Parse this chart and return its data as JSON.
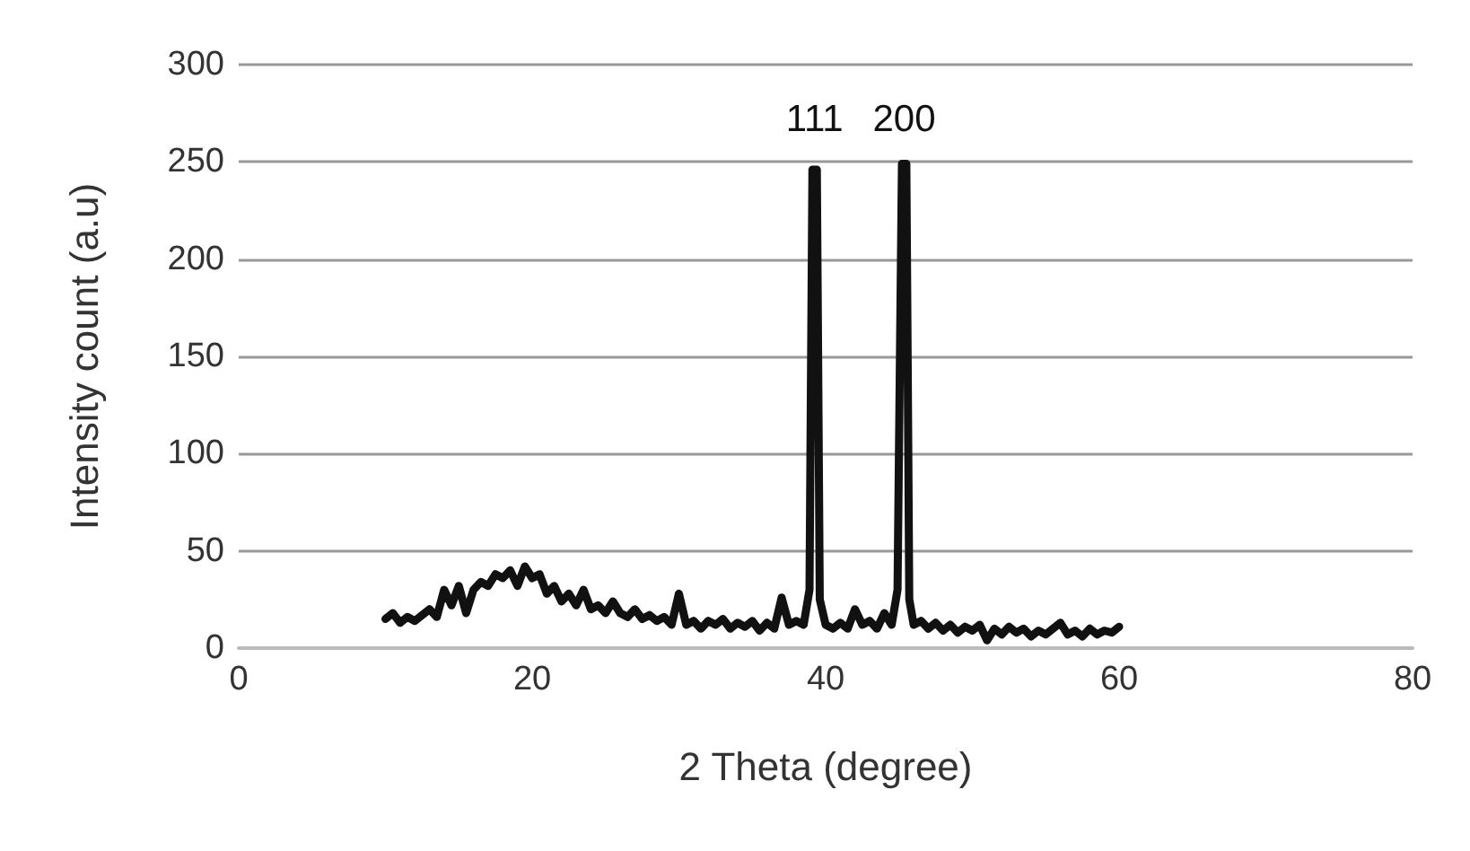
{
  "chart_data": {
    "type": "line",
    "xlabel": "2 Theta (degree)",
    "ylabel": "Intensity count (a.u)",
    "xlim": [
      0,
      80
    ],
    "xticks": [
      0,
      20,
      40,
      60,
      80
    ],
    "ylim": [
      0,
      300
    ],
    "yticks": [
      0,
      50,
      100,
      150,
      200,
      250,
      300
    ],
    "grid": "y",
    "marker": "none",
    "line_style": "solid",
    "annotations": [
      {
        "text": "111",
        "x": 39.25,
        "y": 272
      },
      {
        "text": "200",
        "x": 45.35,
        "y": 272
      }
    ],
    "series": [
      {
        "color": "#111111",
        "x": [
          10,
          10.5,
          11,
          11.5,
          12,
          12.5,
          13,
          13.5,
          14,
          14.5,
          15,
          15.5,
          16,
          16.5,
          17,
          17.5,
          18,
          18.5,
          19,
          19.5,
          20,
          20.5,
          21,
          21.5,
          22,
          22.5,
          23,
          23.5,
          24,
          24.5,
          25,
          25.5,
          26,
          26.5,
          27,
          27.5,
          28,
          28.5,
          29,
          29.5,
          30,
          30.5,
          31,
          31.5,
          32,
          32.5,
          33,
          33.5,
          34,
          34.5,
          35,
          35.5,
          36,
          36.5,
          37,
          37.5,
          38,
          38.5,
          38.9,
          39.1,
          39.4,
          39.6,
          40,
          40.5,
          41,
          41.5,
          42,
          42.5,
          43,
          43.5,
          44,
          44.5,
          44.9,
          45.2,
          45.5,
          45.7,
          46,
          46.5,
          47,
          47.5,
          48,
          48.5,
          49,
          49.5,
          50,
          50.5,
          51,
          51.5,
          52,
          52.5,
          53,
          53.5,
          54,
          54.5,
          55,
          55.5,
          56,
          56.5,
          57,
          57.5,
          58,
          58.5,
          59,
          59.5,
          60
        ],
        "values": [
          15,
          18,
          13,
          16,
          14,
          17,
          20,
          16,
          30,
          22,
          32,
          18,
          30,
          34,
          32,
          38,
          36,
          40,
          32,
          42,
          36,
          38,
          28,
          32,
          24,
          28,
          22,
          30,
          20,
          22,
          18,
          24,
          18,
          16,
          20,
          15,
          17,
          14,
          16,
          12,
          28,
          12,
          14,
          10,
          14,
          12,
          15,
          10,
          13,
          11,
          14,
          9,
          13,
          10,
          26,
          12,
          14,
          12,
          30,
          246,
          246,
          25,
          12,
          10,
          13,
          10,
          20,
          12,
          14,
          10,
          18,
          12,
          30,
          249,
          249,
          25,
          12,
          14,
          10,
          13,
          9,
          12,
          8,
          11,
          9,
          12,
          4,
          10,
          7,
          11,
          8,
          10,
          6,
          9,
          7,
          10,
          13,
          7,
          9,
          6,
          10,
          7,
          9,
          8,
          11
        ]
      }
    ]
  }
}
